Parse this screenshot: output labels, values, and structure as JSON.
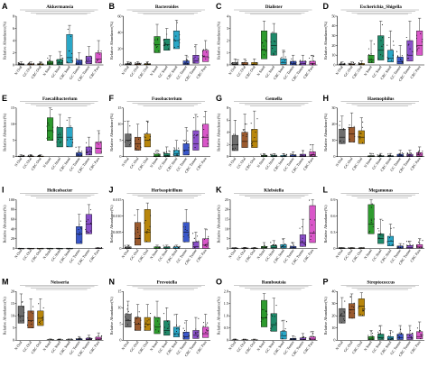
{
  "group_labels": [
    "N Oral",
    "GC Oral",
    "CRC Oral",
    "N Stool",
    "GC Stool",
    "CRC Stool",
    "GC Tumor",
    "CRC Tumor",
    "CRC Para"
  ],
  "colors": [
    "#6d6d6d",
    "#9a5a2e",
    "#b8860b",
    "#2e9b2e",
    "#1f8a6a",
    "#2aa7c7",
    "#3a57c9",
    "#8a4fc9",
    "#d957c9"
  ],
  "chart_data": [
    {
      "type": "box",
      "panel": "A",
      "title": "Akkermansia",
      "ylabel": "Relative Abundance(%)",
      "yticks": [
        "0",
        "2",
        "4",
        "6",
        "8"
      ],
      "ylim": [
        0,
        8
      ],
      "medians": [
        0.05,
        0.05,
        0.05,
        0.2,
        0.3,
        1.2,
        0.3,
        0.6,
        1.0
      ],
      "q1": [
        0.0,
        0.0,
        0.0,
        0.05,
        0.05,
        0.3,
        0.05,
        0.2,
        0.3
      ],
      "q3": [
        0.2,
        0.2,
        0.2,
        0.6,
        0.9,
        5.0,
        0.8,
        1.4,
        2.0
      ],
      "whisker_high": [
        0.5,
        0.5,
        0.5,
        1.5,
        2.2,
        6.5,
        2.0,
        3.0,
        4.0
      ]
    },
    {
      "type": "box",
      "panel": "B",
      "title": "Bacteroides",
      "ylabel": "Relative Abundance(%)",
      "yticks": [
        "0",
        "20",
        "40",
        "60"
      ],
      "ylim": [
        0,
        60
      ],
      "medians": [
        0.5,
        0.5,
        0.5,
        25,
        25,
        30,
        2,
        5,
        10
      ],
      "q1": [
        0.1,
        0.1,
        0.1,
        15,
        18,
        20,
        0.5,
        2,
        4
      ],
      "q3": [
        1.5,
        1.5,
        1.5,
        35,
        32,
        42,
        5,
        12,
        18
      ],
      "whisker_high": [
        4,
        4,
        4,
        50,
        45,
        55,
        12,
        25,
        30
      ]
    },
    {
      "type": "box",
      "panel": "C",
      "title": "Dialister",
      "ylabel": "Relative Abundance(%)",
      "yticks": [
        "0",
        "1",
        "2",
        "3",
        "4"
      ],
      "ylim": [
        0,
        4
      ],
      "medians": [
        0.05,
        0.05,
        0.05,
        1.2,
        1.6,
        0.2,
        0.1,
        0.1,
        0.1
      ],
      "q1": [
        0.0,
        0.0,
        0.0,
        0.5,
        0.8,
        0.05,
        0.0,
        0.0,
        0.0
      ],
      "q3": [
        0.2,
        0.2,
        0.2,
        2.8,
        2.6,
        0.5,
        0.3,
        0.3,
        0.3
      ],
      "whisker_high": [
        0.5,
        0.5,
        0.5,
        3.6,
        3.4,
        1.2,
        0.8,
        0.8,
        0.8
      ]
    },
    {
      "type": "box",
      "panel": "D",
      "title": "Escherichia_Shigella",
      "ylabel": "Relative Abundance(%)",
      "yticks": [
        "0",
        "10",
        "20",
        "30",
        "40",
        "50"
      ],
      "ylim": [
        0,
        50
      ],
      "medians": [
        0.2,
        0.2,
        0.3,
        5,
        15,
        7,
        3,
        10,
        20
      ],
      "q1": [
        0.0,
        0.0,
        0.1,
        2,
        5,
        3,
        1,
        4,
        10
      ],
      "q3": [
        1,
        1,
        1.5,
        10,
        30,
        15,
        8,
        25,
        35
      ],
      "whisker_high": [
        3,
        3,
        4,
        25,
        45,
        35,
        20,
        45,
        48
      ]
    },
    {
      "type": "box",
      "panel": "E",
      "title": "Faecalibacterium",
      "ylabel": "Relative Abundance(%)",
      "yticks": [
        "0",
        "5",
        "10",
        "15"
      ],
      "ylim": [
        0,
        15
      ],
      "medians": [
        0.05,
        0.05,
        0.05,
        8,
        6,
        6,
        0.5,
        1.5,
        2.5
      ],
      "q1": [
        0.0,
        0.0,
        0.0,
        5,
        3,
        3,
        0.2,
        0.5,
        1.0
      ],
      "q3": [
        0.2,
        0.2,
        0.2,
        12,
        9,
        9,
        1.2,
        3.0,
        4.5
      ],
      "whisker_high": [
        0.6,
        0.6,
        0.6,
        15,
        13,
        12,
        3,
        6,
        8
      ]
    },
    {
      "type": "box",
      "panel": "F",
      "title": "Fusobacterium",
      "ylabel": "Relative Abundance(%)",
      "yticks": [
        "0",
        "5",
        "10",
        "15"
      ],
      "ylim": [
        0,
        15
      ],
      "medians": [
        5,
        4,
        5,
        0.2,
        0.3,
        1,
        2,
        4,
        6
      ],
      "q1": [
        3,
        2,
        3,
        0.05,
        0.1,
        0.3,
        0.5,
        2,
        3
      ],
      "q3": [
        7,
        6,
        7,
        0.8,
        1,
        2,
        4,
        8,
        10
      ],
      "whisker_high": [
        11,
        10,
        11,
        2,
        3,
        5,
        9,
        13,
        14
      ]
    },
    {
      "type": "box",
      "panel": "G",
      "title": "Gemella",
      "ylabel": "Relative Abundance(%)",
      "yticks": [
        "0",
        "2",
        "4",
        "6",
        "8"
      ],
      "ylim": [
        0,
        8
      ],
      "medians": [
        2,
        2.5,
        2.5,
        0.05,
        0.05,
        0.05,
        0.1,
        0.1,
        0.3
      ],
      "q1": [
        1,
        1.5,
        1.5,
        0.0,
        0.0,
        0.0,
        0.0,
        0.0,
        0.1
      ],
      "q3": [
        3.5,
        4,
        4.5,
        0.2,
        0.2,
        0.2,
        0.3,
        0.4,
        0.8
      ],
      "whisker_high": [
        6,
        7,
        7.5,
        0.5,
        0.5,
        0.5,
        0.8,
        1,
        2
      ]
    },
    {
      "type": "box",
      "panel": "H",
      "title": "Haemophilus",
      "ylabel": "Relative Abundance(%)",
      "yticks": [
        "0",
        "10",
        "20",
        "30"
      ],
      "ylim": [
        0,
        30
      ],
      "medians": [
        12,
        14,
        12,
        0.2,
        0.2,
        0.2,
        0.5,
        0.5,
        1
      ],
      "q1": [
        8,
        9,
        8,
        0.05,
        0.05,
        0.05,
        0.1,
        0.1,
        0.3
      ],
      "q3": [
        17,
        18,
        16,
        0.6,
        0.6,
        0.6,
        1.5,
        1.5,
        2.5
      ],
      "whisker_high": [
        25,
        27,
        24,
        2,
        2,
        2,
        4,
        4,
        6
      ]
    },
    {
      "type": "box",
      "panel": "I",
      "title": "Helicobacter",
      "ylabel": "Relative Abundance(%)",
      "yticks": [
        "0",
        "20",
        "40",
        "60",
        "80",
        "100"
      ],
      "ylim": [
        0,
        100
      ],
      "medians": [
        0.0,
        0.0,
        0.0,
        0.0,
        0.0,
        0.0,
        30,
        50,
        0.2
      ],
      "q1": [
        0.0,
        0.0,
        0.0,
        0.0,
        0.0,
        0.0,
        10,
        30,
        0.0
      ],
      "q3": [
        0.1,
        0.1,
        0.1,
        0.1,
        0.1,
        0.1,
        45,
        70,
        0.5
      ],
      "whisker_high": [
        0.2,
        0.2,
        0.2,
        0.2,
        0.2,
        0.2,
        70,
        90,
        2
      ]
    },
    {
      "type": "box",
      "panel": "J",
      "title": "Herbaspirillum",
      "ylabel": "Relative Abundance(%)",
      "yticks": [
        "0",
        "0.005",
        "0.010",
        "0.015"
      ],
      "ylim": [
        0,
        0.015
      ],
      "medians": [
        0.0,
        0.003,
        0.005,
        0.0,
        0.0,
        0.0,
        0.005,
        0.0005,
        0.001
      ],
      "q1": [
        0.0,
        0.001,
        0.002,
        0.0,
        0.0,
        0.0,
        0.002,
        0.0,
        0.0
      ],
      "q3": [
        0.0005,
        0.008,
        0.012,
        0.0005,
        0.0005,
        0.0005,
        0.008,
        0.002,
        0.003
      ],
      "whisker_high": [
        0.001,
        0.012,
        0.014,
        0.001,
        0.001,
        0.001,
        0.012,
        0.005,
        0.006
      ]
    },
    {
      "type": "box",
      "panel": "K",
      "title": "Klebsiella",
      "ylabel": "Relative Abundance(%)",
      "yticks": [
        "0",
        "5",
        "10",
        "15",
        "20",
        "25"
      ],
      "ylim": [
        0,
        25
      ],
      "medians": [
        0.05,
        0.05,
        0.05,
        0.3,
        0.5,
        0.8,
        0.3,
        3,
        8
      ],
      "q1": [
        0.0,
        0.0,
        0.0,
        0.05,
        0.1,
        0.2,
        0.05,
        1,
        3
      ],
      "q3": [
        0.2,
        0.2,
        0.2,
        1,
        1.5,
        2,
        1,
        7,
        22
      ],
      "whisker_high": [
        0.5,
        0.5,
        0.5,
        3,
        4,
        5,
        3,
        15,
        25
      ]
    },
    {
      "type": "box",
      "panel": "L",
      "title": "Megamonas",
      "ylabel": "Relative Abundance(%)",
      "yticks": [
        "0",
        "0.3",
        "0.6",
        "0.9"
      ],
      "ylim": [
        0,
        1.0
      ],
      "medians": [
        0.0,
        0.0,
        0.0,
        0.5,
        0.2,
        0.15,
        0.01,
        0.02,
        0.03
      ],
      "q1": [
        0.0,
        0.0,
        0.0,
        0.3,
        0.1,
        0.05,
        0.0,
        0.0,
        0.01
      ],
      "q3": [
        0.01,
        0.01,
        0.01,
        0.9,
        0.3,
        0.25,
        0.05,
        0.06,
        0.08
      ],
      "whisker_high": [
        0.02,
        0.02,
        0.02,
        1.0,
        0.6,
        0.5,
        0.1,
        0.15,
        0.2
      ]
    },
    {
      "type": "box",
      "panel": "M",
      "title": "Neisseria",
      "ylabel": "Relative Abundance(%)",
      "yticks": [
        "0",
        "5",
        "10",
        "15",
        "20"
      ],
      "ylim": [
        0,
        20
      ],
      "medians": [
        10,
        8,
        9,
        0.05,
        0.05,
        0.05,
        0.2,
        0.3,
        0.5
      ],
      "q1": [
        7,
        5,
        6,
        0.0,
        0.0,
        0.0,
        0.05,
        0.1,
        0.1
      ],
      "q3": [
        14,
        12,
        12,
        0.2,
        0.2,
        0.2,
        0.6,
        0.8,
        1.2
      ],
      "whisker_high": [
        19,
        17,
        17,
        0.5,
        0.5,
        0.5,
        1.5,
        2,
        3
      ]
    },
    {
      "type": "box",
      "panel": "N",
      "title": "Prevotella",
      "ylabel": "Relative Abundance(%)",
      "yticks": [
        "0",
        "5",
        "10",
        "15"
      ],
      "ylim": [
        0,
        15
      ],
      "medians": [
        6,
        5,
        5,
        4,
        3,
        2,
        1,
        1.5,
        2
      ],
      "q1": [
        4,
        3,
        3,
        2,
        1.5,
        1,
        0.3,
        0.5,
        0.8
      ],
      "q3": [
        8,
        7,
        7,
        7,
        6,
        4,
        2.5,
        3,
        4
      ],
      "whisker_high": [
        12,
        11,
        11,
        12,
        10,
        8,
        6,
        7,
        8
      ]
    },
    {
      "type": "box",
      "panel": "O",
      "title": "Romboutsia",
      "ylabel": "Relative Abundance(%)",
      "yticks": [
        "0",
        "0.5",
        "1.0",
        "1.5",
        "2.0"
      ],
      "ylim": [
        0,
        2.2
      ],
      "medians": [
        0.0,
        0.0,
        0.0,
        1.0,
        0.7,
        0.2,
        0.02,
        0.03,
        0.05
      ],
      "q1": [
        0.0,
        0.0,
        0.0,
        0.6,
        0.4,
        0.05,
        0.0,
        0.0,
        0.01
      ],
      "q3": [
        0.02,
        0.02,
        0.02,
        1.8,
        1.2,
        0.4,
        0.08,
        0.1,
        0.15
      ],
      "whisker_high": [
        0.05,
        0.05,
        0.05,
        2.1,
        1.9,
        0.9,
        0.2,
        0.3,
        0.4
      ]
    },
    {
      "type": "box",
      "panel": "P",
      "title": "Streptococcus",
      "ylabel": "Relative Abundance(%)",
      "yticks": [
        "0",
        "10",
        "20",
        "30",
        "40"
      ],
      "ylim": [
        0,
        40
      ],
      "medians": [
        20,
        25,
        28,
        1,
        2,
        1,
        2,
        2,
        3
      ],
      "q1": [
        14,
        18,
        20,
        0.3,
        0.5,
        0.3,
        0.5,
        0.5,
        1
      ],
      "q3": [
        26,
        30,
        34,
        3,
        5,
        3,
        5,
        5,
        7
      ],
      "whisker_high": [
        35,
        38,
        39,
        8,
        12,
        8,
        12,
        12,
        15
      ]
    }
  ]
}
